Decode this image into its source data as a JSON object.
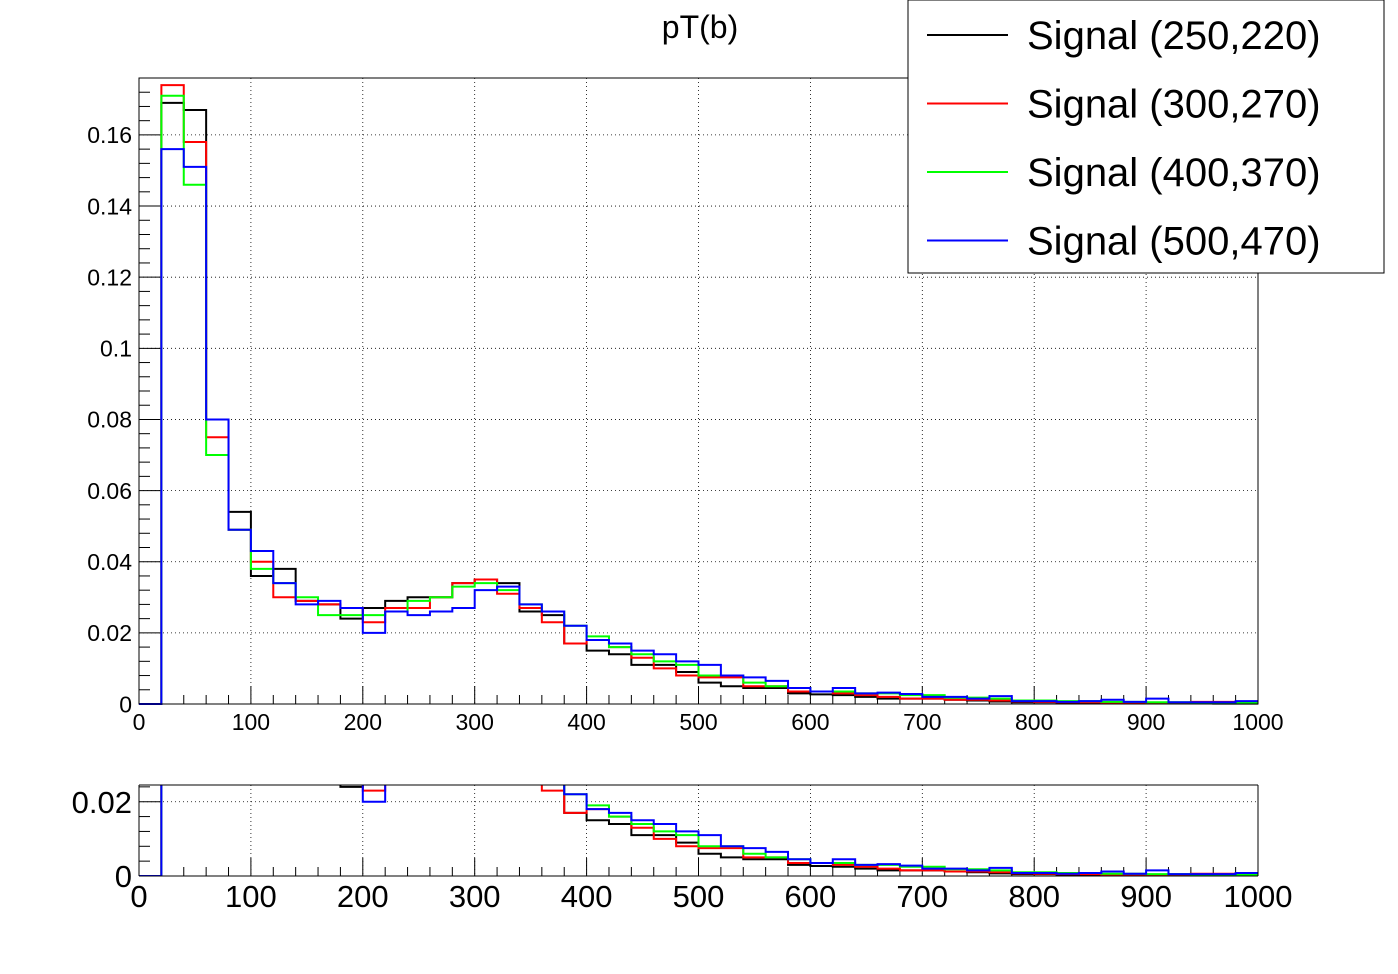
{
  "chart_data": {
    "type": "line",
    "title": "pT(b)",
    "x_range": [
      0,
      1000
    ],
    "bin_width": 20,
    "grid": true,
    "legend_position": "top-right",
    "x_ticks": [
      "0",
      "100",
      "200",
      "300",
      "400",
      "500",
      "600",
      "700",
      "800",
      "900",
      "1000"
    ],
    "main_panel": {
      "ylim": [
        0,
        0.176
      ],
      "y_ticks": [
        "0",
        "0.02",
        "0.04",
        "0.06",
        "0.08",
        "0.1",
        "0.12",
        "0.14",
        "0.16"
      ]
    },
    "lower_panel": {
      "ylim": [
        0,
        0.0245
      ],
      "y_ticks": [
        "0",
        "0.02"
      ]
    },
    "series": [
      {
        "name": "Signal (250,220)",
        "color": "#000000",
        "values": [
          0,
          0.169,
          0.167,
          0.08,
          0.054,
          0.036,
          0.038,
          0.029,
          0.028,
          0.024,
          0.027,
          0.029,
          0.03,
          0.03,
          0.034,
          0.035,
          0.034,
          0.026,
          0.025,
          0.017,
          0.015,
          0.014,
          0.011,
          0.011,
          0.009,
          0.006,
          0.005,
          0.0045,
          0.0045,
          0.003,
          0.0027,
          0.0025,
          0.002,
          0.0015,
          0.0015,
          0.0015,
          0.0012,
          0.001,
          0.0007,
          0.0005,
          0.0005,
          0.0004,
          0.0003,
          0.0003,
          0.0002,
          0.0002,
          0.0002,
          0.0002,
          0.0001,
          0.0001
        ]
      },
      {
        "name": "Signal (300,270)",
        "color": "#ff0000",
        "values": [
          0,
          0.174,
          0.158,
          0.075,
          0.049,
          0.04,
          0.03,
          0.029,
          0.028,
          0.027,
          0.023,
          0.027,
          0.027,
          0.03,
          0.034,
          0.035,
          0.031,
          0.027,
          0.023,
          0.017,
          0.018,
          0.016,
          0.013,
          0.01,
          0.008,
          0.0075,
          0.0075,
          0.005,
          0.005,
          0.0035,
          0.0035,
          0.003,
          0.0025,
          0.002,
          0.0015,
          0.0015,
          0.0012,
          0.0012,
          0.001,
          0.0007,
          0.0006,
          0.0005,
          0.0005,
          0.0004,
          0.0004,
          0.0003,
          0.0003,
          0.0006,
          0.0006,
          0.0004
        ]
      },
      {
        "name": "Signal (400,370)",
        "color": "#00ff00",
        "values": [
          0,
          0.171,
          0.146,
          0.07,
          0.049,
          0.038,
          0.034,
          0.03,
          0.025,
          0.025,
          0.025,
          0.026,
          0.029,
          0.03,
          0.033,
          0.034,
          0.032,
          0.028,
          0.026,
          0.022,
          0.019,
          0.016,
          0.014,
          0.012,
          0.011,
          0.008,
          0.008,
          0.006,
          0.005,
          0.0045,
          0.0035,
          0.0035,
          0.003,
          0.003,
          0.0025,
          0.0025,
          0.0018,
          0.0018,
          0.0015,
          0.001,
          0.001,
          0.0008,
          0.0008,
          0.0006,
          0.0006,
          0.0005,
          0.0005,
          0.0004,
          0.0004,
          0.0003
        ]
      },
      {
        "name": "Signal (500,470)",
        "color": "#0000ff",
        "values": [
          0,
          0.156,
          0.151,
          0.08,
          0.049,
          0.043,
          0.034,
          0.028,
          0.029,
          0.027,
          0.02,
          0.026,
          0.025,
          0.026,
          0.027,
          0.032,
          0.033,
          0.028,
          0.026,
          0.022,
          0.018,
          0.017,
          0.015,
          0.014,
          0.012,
          0.011,
          0.008,
          0.0075,
          0.0065,
          0.0045,
          0.0035,
          0.0045,
          0.003,
          0.0032,
          0.0028,
          0.002,
          0.002,
          0.0015,
          0.0022,
          0.0008,
          0.0008,
          0.0006,
          0.0008,
          0.0012,
          0.0006,
          0.0015,
          0.0005,
          0.0005,
          0.0005,
          0.0008
        ]
      }
    ]
  }
}
